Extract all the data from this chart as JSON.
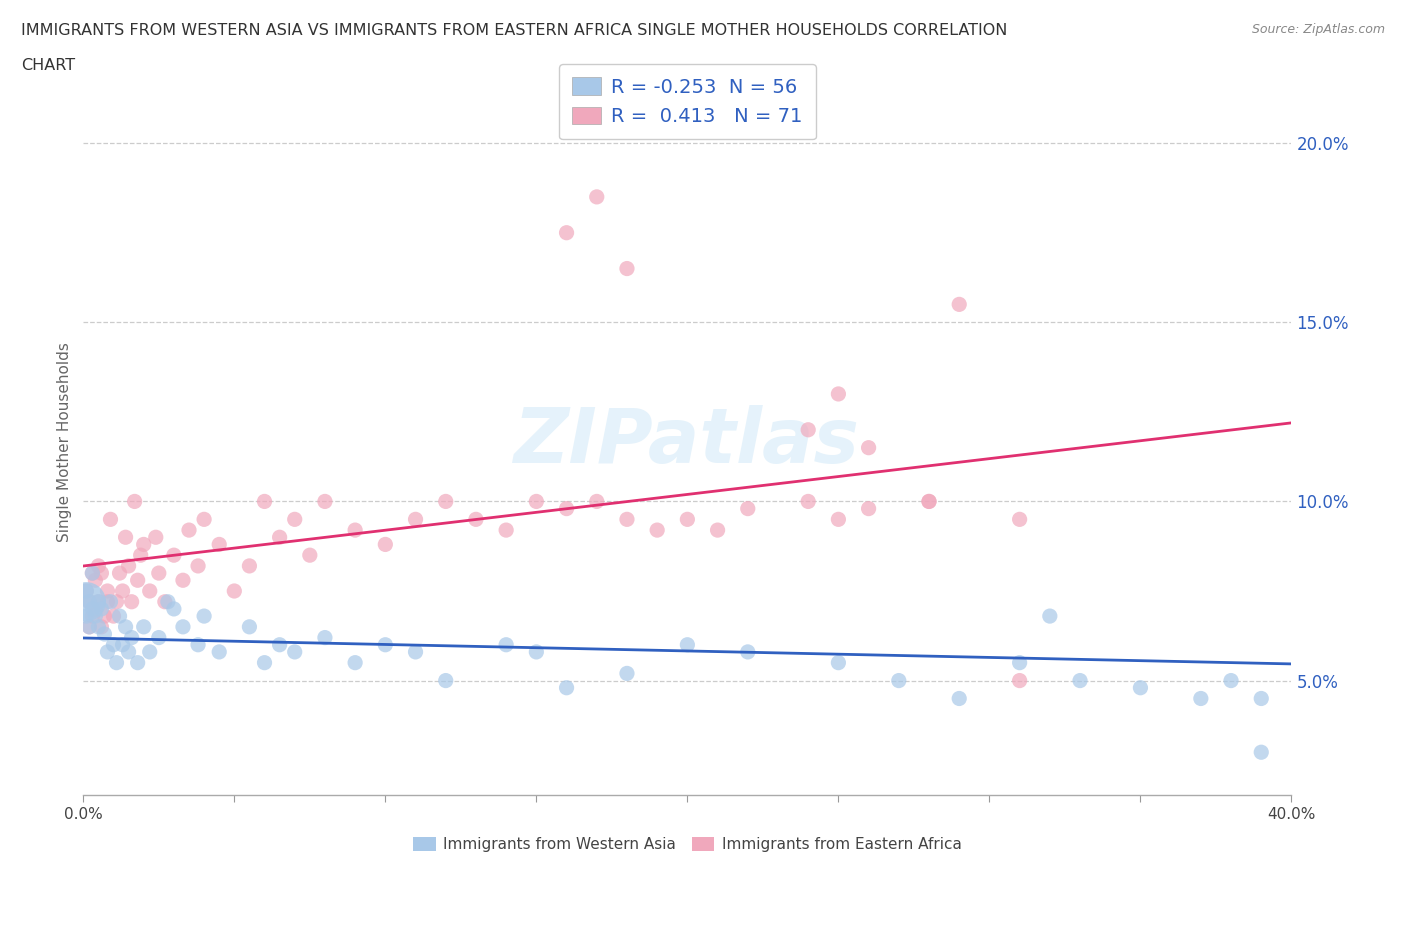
{
  "title_line1": "IMMIGRANTS FROM WESTERN ASIA VS IMMIGRANTS FROM EASTERN AFRICA SINGLE MOTHER HOUSEHOLDS CORRELATION",
  "title_line2": "CHART",
  "source": "Source: ZipAtlas.com",
  "ylabel": "Single Mother Households",
  "xlim": [
    0.0,
    0.4
  ],
  "ylim": [
    0.018,
    0.215
  ],
  "x_tick_positions": [
    0.0,
    0.4
  ],
  "x_tick_labels": [
    "0.0%",
    "40.0%"
  ],
  "y_ticks": [
    0.05,
    0.1,
    0.15,
    0.2
  ],
  "y_tick_labels": [
    "5.0%",
    "10.0%",
    "15.0%",
    "20.0%"
  ],
  "watermark": "ZIPatlas",
  "blue_color": "#A8C8E8",
  "pink_color": "#F0A8BC",
  "blue_line_color": "#3060C0",
  "pink_line_color": "#E03070",
  "R_blue": -0.253,
  "N_blue": 56,
  "R_pink": 0.413,
  "N_pink": 71,
  "legend_label_blue": "Immigrants from Western Asia",
  "legend_label_pink": "Immigrants from Eastern Africa",
  "marker_size": 120,
  "figsize": [
    14.06,
    9.3
  ],
  "dpi": 100,
  "grid_color": "#CCCCCC",
  "background_color": "#FFFFFF",
  "blue_x": [
    0.001,
    0.001,
    0.002,
    0.002,
    0.003,
    0.003,
    0.004,
    0.005,
    0.005,
    0.006,
    0.007,
    0.008,
    0.009,
    0.01,
    0.011,
    0.012,
    0.013,
    0.014,
    0.015,
    0.016,
    0.018,
    0.02,
    0.022,
    0.025,
    0.028,
    0.03,
    0.033,
    0.038,
    0.04,
    0.045,
    0.055,
    0.06,
    0.065,
    0.07,
    0.08,
    0.09,
    0.1,
    0.11,
    0.12,
    0.14,
    0.15,
    0.16,
    0.18,
    0.2,
    0.22,
    0.25,
    0.27,
    0.29,
    0.31,
    0.33,
    0.35,
    0.37,
    0.38,
    0.39,
    0.39,
    0.32
  ],
  "blue_y": [
    0.075,
    0.068,
    0.072,
    0.065,
    0.07,
    0.08,
    0.068,
    0.072,
    0.065,
    0.07,
    0.063,
    0.058,
    0.072,
    0.06,
    0.055,
    0.068,
    0.06,
    0.065,
    0.058,
    0.062,
    0.055,
    0.065,
    0.058,
    0.062,
    0.072,
    0.07,
    0.065,
    0.06,
    0.068,
    0.058,
    0.065,
    0.055,
    0.06,
    0.058,
    0.062,
    0.055,
    0.06,
    0.058,
    0.05,
    0.06,
    0.058,
    0.048,
    0.052,
    0.06,
    0.058,
    0.055,
    0.05,
    0.045,
    0.055,
    0.05,
    0.048,
    0.045,
    0.05,
    0.045,
    0.03,
    0.068
  ],
  "pink_x": [
    0.001,
    0.002,
    0.002,
    0.003,
    0.003,
    0.004,
    0.004,
    0.005,
    0.005,
    0.006,
    0.006,
    0.007,
    0.008,
    0.008,
    0.009,
    0.01,
    0.011,
    0.012,
    0.013,
    0.014,
    0.015,
    0.016,
    0.017,
    0.018,
    0.019,
    0.02,
    0.022,
    0.024,
    0.025,
    0.027,
    0.03,
    0.033,
    0.035,
    0.038,
    0.04,
    0.045,
    0.05,
    0.055,
    0.06,
    0.065,
    0.07,
    0.075,
    0.08,
    0.09,
    0.1,
    0.11,
    0.12,
    0.13,
    0.14,
    0.15,
    0.16,
    0.17,
    0.18,
    0.19,
    0.2,
    0.21,
    0.22,
    0.24,
    0.25,
    0.26,
    0.28,
    0.29,
    0.31,
    0.26,
    0.24,
    0.16,
    0.17,
    0.18,
    0.25,
    0.28,
    0.31
  ],
  "pink_y": [
    0.075,
    0.065,
    0.072,
    0.08,
    0.068,
    0.07,
    0.078,
    0.072,
    0.082,
    0.065,
    0.08,
    0.068,
    0.072,
    0.075,
    0.095,
    0.068,
    0.072,
    0.08,
    0.075,
    0.09,
    0.082,
    0.072,
    0.1,
    0.078,
    0.085,
    0.088,
    0.075,
    0.09,
    0.08,
    0.072,
    0.085,
    0.078,
    0.092,
    0.082,
    0.095,
    0.088,
    0.075,
    0.082,
    0.1,
    0.09,
    0.095,
    0.085,
    0.1,
    0.092,
    0.088,
    0.095,
    0.1,
    0.095,
    0.092,
    0.1,
    0.098,
    0.1,
    0.095,
    0.092,
    0.095,
    0.092,
    0.098,
    0.1,
    0.095,
    0.098,
    0.1,
    0.155,
    0.095,
    0.115,
    0.12,
    0.175,
    0.185,
    0.165,
    0.13,
    0.1,
    0.05
  ]
}
